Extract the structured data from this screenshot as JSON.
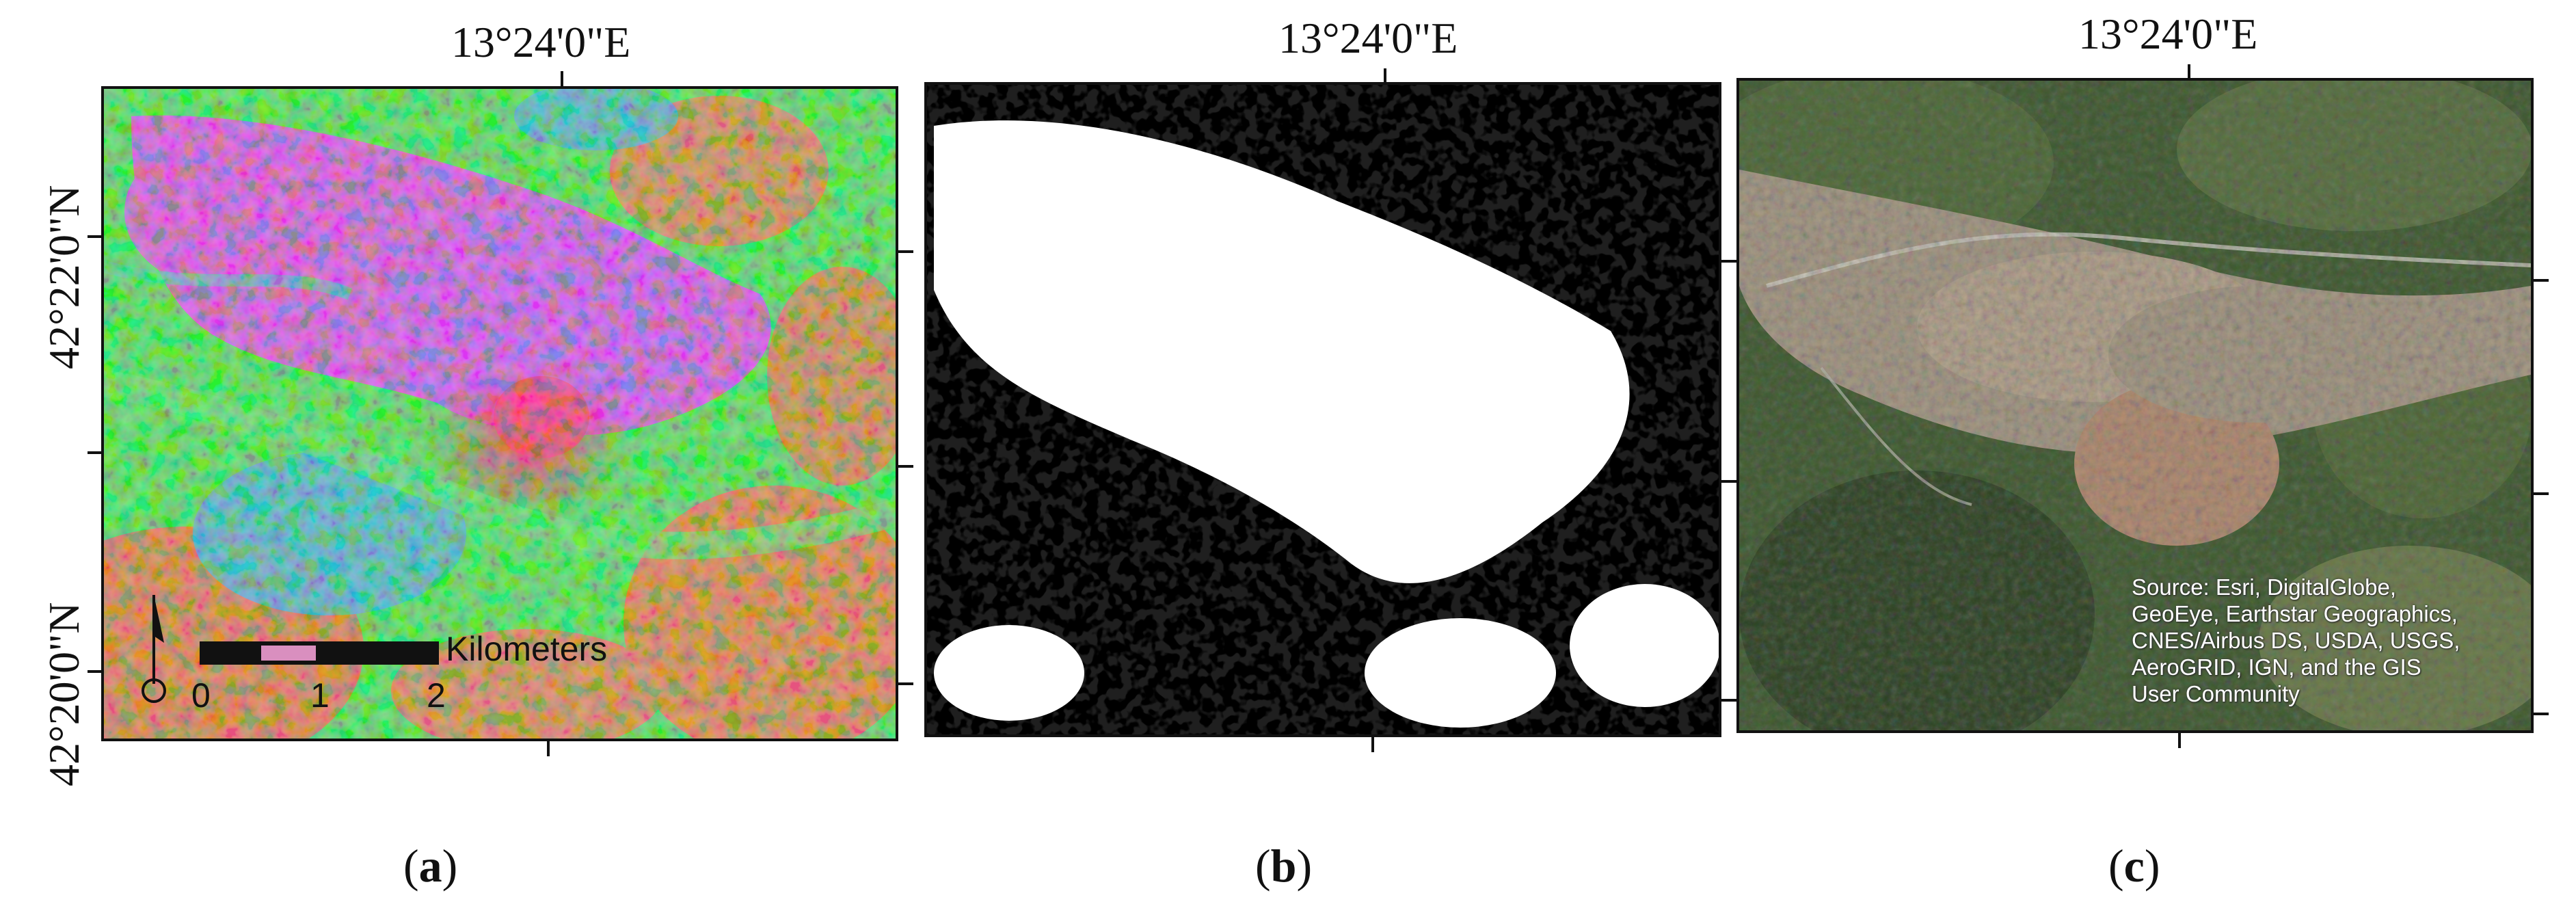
{
  "panels": [
    {
      "id": "a",
      "caption_open": "(",
      "caption_letter": "a",
      "caption_close": ")",
      "top_coord": "13°24'0\"E",
      "left_coord_upper": "42°22'0\"N",
      "left_coord_lower": "42°20'0\"N",
      "description_type": "false-color multispectral composite"
    },
    {
      "id": "b",
      "caption_open": "(",
      "caption_letter": "b",
      "caption_close": ")",
      "top_coord": "13°24'0\"E",
      "description_type": "binary classification mask"
    },
    {
      "id": "c",
      "caption_open": "(",
      "caption_letter": "c",
      "caption_close": ")",
      "top_coord": "13°24'0\"E",
      "description_type": "satellite basemap",
      "credit_lines": "Source: Esri, DigitalGlobe,\nGeoEye, Earthstar Geographics,\nCNES/Airbus DS, USDA, USGS,\nAeroGRID, IGN, and the GIS\nUser Community"
    }
  ],
  "scale_bar": {
    "unit_label": "Kilometers",
    "tick_labels": [
      "0",
      "1",
      "2"
    ]
  },
  "colors": {
    "magenta": "#e040e8",
    "green": "#3ee84a",
    "orange": "#d87a3a",
    "cyan": "#3ab8c8",
    "red": "#ff2a5a",
    "mask_white": "#ffffff",
    "mask_black": "#000000",
    "sat_forest": "#2f4a26",
    "sat_urban": "#b7a08a"
  }
}
